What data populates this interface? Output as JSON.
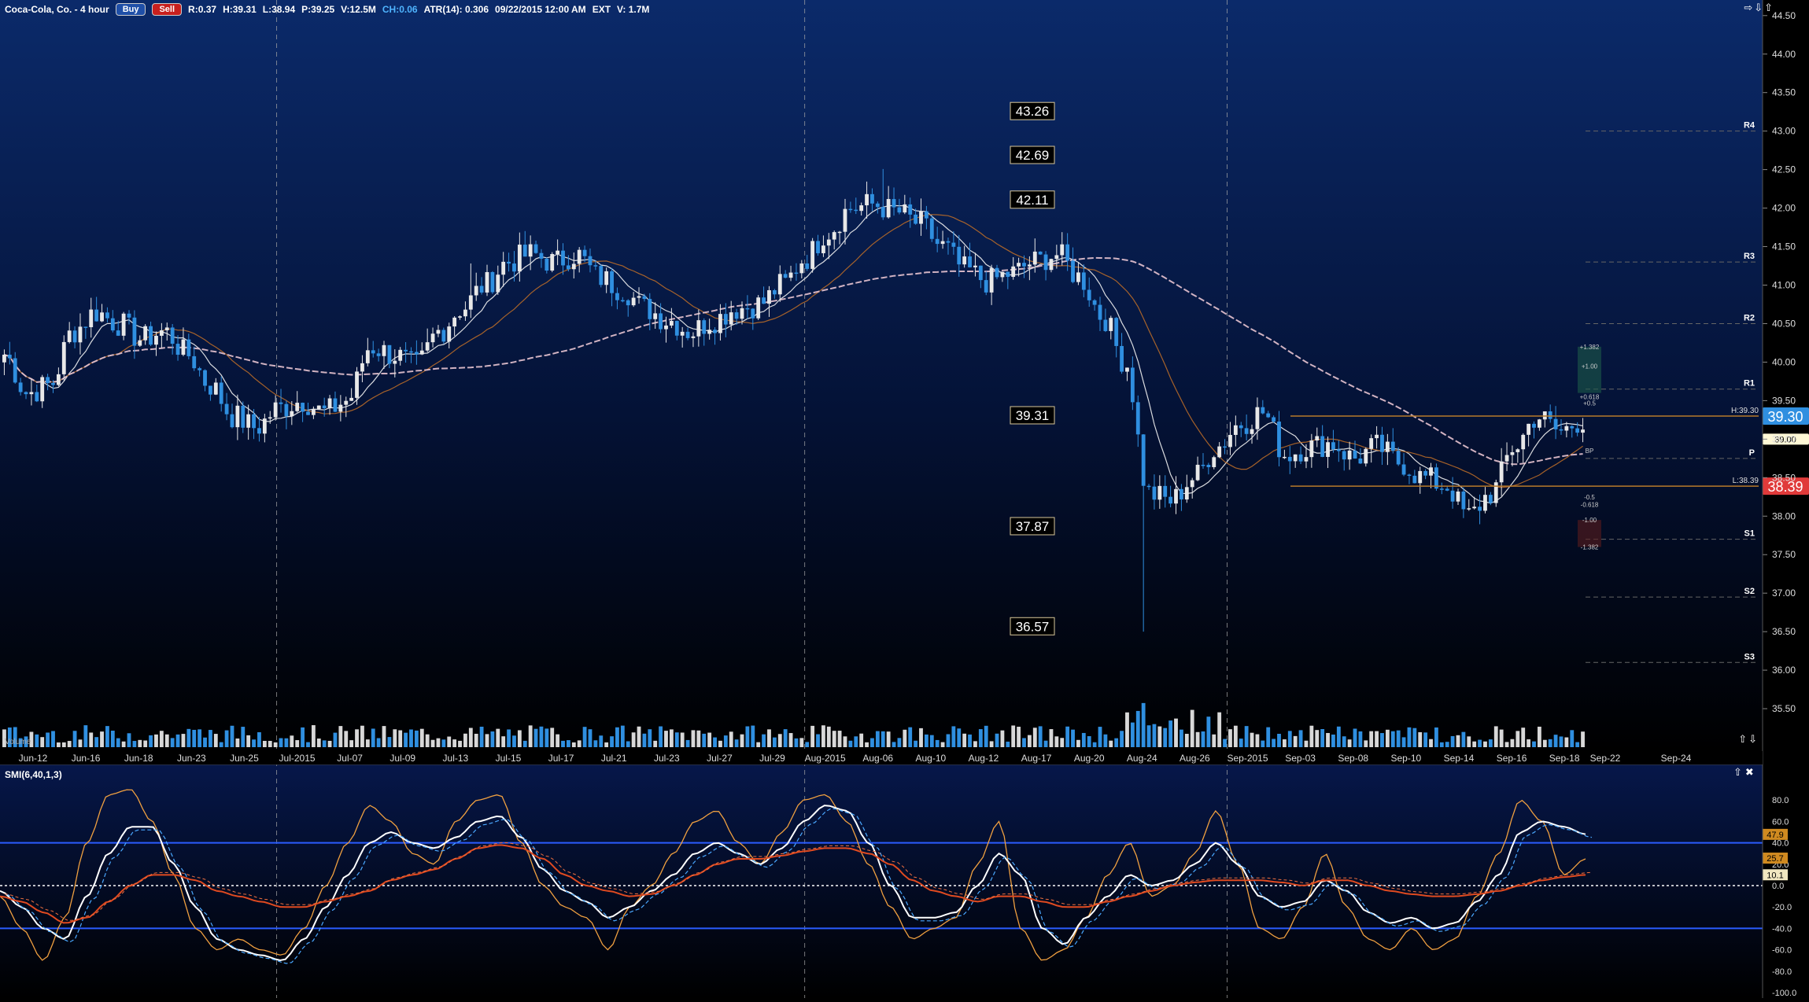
{
  "header": {
    "symbol_title": "Coca-Cola, Co. - 4 hour",
    "buy_label": "Buy",
    "sell_label": "Sell",
    "stats": {
      "range": "R:0.37",
      "high": "H:39.31",
      "low": "L:38.94",
      "price": "P:39.25",
      "volume": "V:12.5M",
      "change": "CH:0.06",
      "atr": "ATR(14): 0.306",
      "datetime": "09/22/2015 12:00 AM",
      "session": "EXT",
      "ext_volume": "V: 1.7M"
    },
    "nav_arrows": "⇨⇩⇧",
    "scroll_arrows": "⇧⇩"
  },
  "indicator_header": {
    "title": "SMI(6,40,1,3)",
    "controls": "⇧✖"
  },
  "colors": {
    "background_top": "#0b2a6a",
    "background_bottom": "#000000",
    "up_candle": "#e8e8e8",
    "down_candle": "#2f8fe0",
    "sma_fast": "#f2f2f2",
    "sma_mid": "#b86a28",
    "sma_slow": "#e8c4d0",
    "price_box_current": "#2f8fe0",
    "price_box_low": "#e03a3a",
    "price_box_high": "#fff8d6",
    "pivot_line": "#666666",
    "fib_line": "#b87a2a",
    "smi_fast": "#f0a040",
    "smi_white": "#ffffff",
    "smi_blue": "#4aa8ff",
    "smi_red": "#e04a20",
    "smi_band": "#2a5cff"
  },
  "chart_data": [
    {
      "type": "candlestick",
      "title": "Coca-Cola, Co. - 4 hour",
      "ylim": [
        35.0,
        44.6
      ],
      "y_ticks": [
        "35.50",
        "36.00",
        "36.50",
        "37.00",
        "37.50",
        "38.00",
        "38.50",
        "39.00",
        "39.50",
        "40.00",
        "40.50",
        "41.00",
        "41.50",
        "42.00",
        "42.50",
        "43.00",
        "43.50",
        "44.00",
        "44.50"
      ],
      "x_tick_labels": [
        "Jun-12",
        "Jun-16",
        "Jun-18",
        "Jun-23",
        "Jun-25",
        "Jul-2015",
        "Jul-07",
        "Jul-09",
        "Jul-13",
        "Jul-15",
        "Jul-17",
        "Jul-21",
        "Jul-23",
        "Jul-27",
        "Jul-29",
        "Aug-2015",
        "Aug-06",
        "Aug-10",
        "Aug-12",
        "Aug-17",
        "Aug-20",
        "Aug-24",
        "Aug-26",
        "Sep-2015",
        "Sep-03",
        "Sep-08",
        "Sep-10",
        "Sep-14",
        "Sep-16",
        "Sep-18",
        "Sep-22",
        "Sep-24"
      ],
      "month_separators": [
        "Jul-2015",
        "Aug-2015",
        "Sep-2015"
      ],
      "keypoints_close": [
        {
          "date": "Jun-12",
          "close": 40.1
        },
        {
          "date": "Jun-15",
          "close": 39.6
        },
        {
          "date": "Jun-16",
          "close": 39.7
        },
        {
          "date": "Jun-17",
          "close": 40.4
        },
        {
          "date": "Jun-18",
          "close": 40.65
        },
        {
          "date": "Jun-19",
          "close": 40.5
        },
        {
          "date": "Jun-22",
          "close": 40.3
        },
        {
          "date": "Jun-23",
          "close": 40.4
        },
        {
          "date": "Jun-24",
          "close": 40.1
        },
        {
          "date": "Jun-25",
          "close": 39.7
        },
        {
          "date": "Jun-26",
          "close": 39.3
        },
        {
          "date": "Jun-29",
          "close": 39.15
        },
        {
          "date": "Jun-30",
          "close": 39.4
        },
        {
          "date": "Jul-01",
          "close": 39.5
        },
        {
          "date": "Jul-02",
          "close": 39.35
        },
        {
          "date": "Jul-06",
          "close": 39.5
        },
        {
          "date": "Jul-07",
          "close": 40.2
        },
        {
          "date": "Jul-08",
          "close": 40.1
        },
        {
          "date": "Jul-09",
          "close": 39.95
        },
        {
          "date": "Jul-10",
          "close": 40.4
        },
        {
          "date": "Jul-13",
          "close": 40.7
        },
        {
          "date": "Jul-14",
          "close": 41.0
        },
        {
          "date": "Jul-15",
          "close": 41.3
        },
        {
          "date": "Jul-16",
          "close": 41.4
        },
        {
          "date": "Jul-17",
          "close": 41.3
        },
        {
          "date": "Jul-20",
          "close": 41.4
        },
        {
          "date": "Jul-21",
          "close": 41.1
        },
        {
          "date": "Jul-22",
          "close": 40.95
        },
        {
          "date": "Jul-23",
          "close": 40.7
        },
        {
          "date": "Jul-24",
          "close": 40.55
        },
        {
          "date": "Jul-27",
          "close": 40.4
        },
        {
          "date": "Jul-28",
          "close": 40.55
        },
        {
          "date": "Jul-29",
          "close": 40.7
        },
        {
          "date": "Jul-30",
          "close": 40.75
        },
        {
          "date": "Jul-31",
          "close": 41.0
        },
        {
          "date": "Aug-03",
          "close": 41.35
        },
        {
          "date": "Aug-04",
          "close": 41.7
        },
        {
          "date": "Aug-05",
          "close": 42.0
        },
        {
          "date": "Aug-06",
          "close": 42.05
        },
        {
          "date": "Aug-07",
          "close": 41.95
        },
        {
          "date": "Aug-10",
          "close": 41.8
        },
        {
          "date": "Aug-11",
          "close": 41.5
        },
        {
          "date": "Aug-12",
          "close": 41.2
        },
        {
          "date": "Aug-13",
          "close": 41.05
        },
        {
          "date": "Aug-14",
          "close": 41.15
        },
        {
          "date": "Aug-17",
          "close": 41.3
        },
        {
          "date": "Aug-18",
          "close": 41.4
        },
        {
          "date": "Aug-19",
          "close": 41.1
        },
        {
          "date": "Aug-20",
          "close": 40.6
        },
        {
          "date": "Aug-21",
          "close": 40.0
        },
        {
          "date": "Aug-24",
          "close": 38.3
        },
        {
          "date": "Aug-25",
          "close": 38.2
        },
        {
          "date": "Aug-26",
          "close": 38.5
        },
        {
          "date": "Aug-27",
          "close": 38.9
        },
        {
          "date": "Aug-28",
          "close": 39.2
        },
        {
          "date": "Aug-31",
          "close": 39.35
        },
        {
          "date": "Sep-01",
          "close": 38.8
        },
        {
          "date": "Sep-02",
          "close": 38.9
        },
        {
          "date": "Sep-03",
          "close": 38.95
        },
        {
          "date": "Sep-04",
          "close": 38.75
        },
        {
          "date": "Sep-08",
          "close": 38.9
        },
        {
          "date": "Sep-09",
          "close": 38.7
        },
        {
          "date": "Sep-10",
          "close": 38.5
        },
        {
          "date": "Sep-11",
          "close": 38.4
        },
        {
          "date": "Sep-14",
          "close": 38.0
        },
        {
          "date": "Sep-15",
          "close": 38.3
        },
        {
          "date": "Sep-16",
          "close": 38.9
        },
        {
          "date": "Sep-17",
          "close": 39.3
        },
        {
          "date": "Sep-18",
          "close": 39.1
        },
        {
          "date": "Sep-21",
          "close": 39.25
        }
      ],
      "moving_averages": [
        "sma_fast",
        "sma_mid",
        "sma_slow"
      ],
      "projection_labels": [
        "43.26",
        "42.69",
        "42.11",
        "39.31",
        "37.87",
        "36.57"
      ],
      "pivot_levels": [
        {
          "label": "R4",
          "value": 43.0
        },
        {
          "label": "R3",
          "value": 41.3
        },
        {
          "label": "R2",
          "value": 40.5
        },
        {
          "label": "R1",
          "value": 39.65
        },
        {
          "label": "P",
          "value": 38.75
        },
        {
          "label": "S1",
          "value": 37.7
        },
        {
          "label": "S2",
          "value": 36.95
        },
        {
          "label": "S3",
          "value": 36.1
        }
      ],
      "price_markers": [
        {
          "label": "39.30",
          "value": 39.3,
          "kind": "current"
        },
        {
          "label": "39.00",
          "value": 39.0,
          "kind": "high-box"
        },
        {
          "label": "38.39",
          "value": 38.39,
          "kind": "low"
        }
      ],
      "high_low_labels": [
        "H:39.30",
        "L:38.39"
      ],
      "fib_labels": [
        "+1.382",
        "+1.00",
        "+0.618",
        "+0.5",
        "BP",
        "-0.5",
        "-0.618",
        "-1.00",
        "-1.382"
      ],
      "volume_label": "Volume"
    },
    {
      "type": "line",
      "title": "SMI(6,40,1,3)",
      "ylim": [
        -100,
        100
      ],
      "y_ticks": [
        "80.0",
        "60.0",
        "40.0",
        "20.0",
        "0.0",
        "-20.0",
        "-40.0",
        "-60.0",
        "-80.0",
        "-100.0"
      ],
      "bands": [
        40,
        -40
      ],
      "last_values": [
        "47.9",
        "25.7",
        "10.1"
      ],
      "series": [
        {
          "color": "smi_fast",
          "values": [
            -10,
            -40,
            -70,
            -30,
            40,
            85,
            90,
            60,
            10,
            -40,
            -60,
            -50,
            -60,
            -65,
            -40,
            0,
            40,
            75,
            60,
            30,
            20,
            60,
            80,
            85,
            40,
            0,
            -20,
            -30,
            -60,
            -20,
            0,
            30,
            60,
            70,
            40,
            20,
            50,
            80,
            85,
            60,
            20,
            -20,
            -50,
            -40,
            -30,
            20,
            60,
            -40,
            -70,
            -60,
            -30,
            10,
            40,
            -10,
            0,
            30,
            70,
            20,
            -40,
            -50,
            -20,
            30,
            -20,
            -50,
            -60,
            -40,
            -60,
            -50,
            -10,
            30,
            80,
            60,
            10,
            25
          ]
        },
        {
          "color": "smi_white",
          "values": [
            -5,
            -20,
            -40,
            -50,
            -10,
            30,
            55,
            55,
            20,
            -20,
            -50,
            -60,
            -65,
            -70,
            -50,
            -20,
            10,
            40,
            50,
            40,
            35,
            45,
            60,
            65,
            45,
            15,
            -5,
            -15,
            -30,
            -20,
            -5,
            10,
            30,
            40,
            30,
            20,
            35,
            60,
            75,
            70,
            40,
            0,
            -30,
            -30,
            -25,
            0,
            30,
            10,
            -40,
            -55,
            -30,
            -10,
            10,
            0,
            5,
            20,
            40,
            20,
            -10,
            -20,
            -15,
            5,
            -5,
            -25,
            -35,
            -30,
            -40,
            -35,
            -15,
            10,
            50,
            60,
            55,
            48
          ]
        },
        {
          "color": "smi_red",
          "values": [
            -10,
            -15,
            -25,
            -35,
            -30,
            -15,
            0,
            10,
            10,
            5,
            -5,
            -10,
            -15,
            -20,
            -20,
            -15,
            -10,
            -5,
            5,
            10,
            15,
            25,
            35,
            38,
            35,
            25,
            10,
            0,
            -5,
            -10,
            -8,
            0,
            10,
            20,
            25,
            25,
            28,
            32,
            35,
            35,
            30,
            20,
            5,
            -5,
            -10,
            -15,
            -10,
            -10,
            -15,
            -20,
            -20,
            -15,
            -10,
            -5,
            0,
            3,
            5,
            5,
            5,
            3,
            0,
            5,
            5,
            0,
            -5,
            -8,
            -10,
            -10,
            -8,
            -5,
            0,
            5,
            8,
            10
          ]
        }
      ]
    }
  ]
}
